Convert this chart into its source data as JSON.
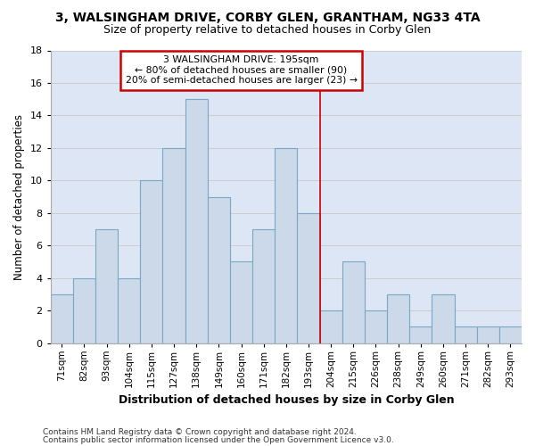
{
  "title1": "3, WALSINGHAM DRIVE, CORBY GLEN, GRANTHAM, NG33 4TA",
  "title2": "Size of property relative to detached houses in Corby Glen",
  "xlabel": "Distribution of detached houses by size in Corby Glen",
  "ylabel": "Number of detached properties",
  "footnote1": "Contains HM Land Registry data © Crown copyright and database right 2024.",
  "footnote2": "Contains public sector information licensed under the Open Government Licence v3.0.",
  "categories": [
    "71sqm",
    "82sqm",
    "93sqm",
    "104sqm",
    "115sqm",
    "127sqm",
    "138sqm",
    "149sqm",
    "160sqm",
    "171sqm",
    "182sqm",
    "193sqm",
    "204sqm",
    "215sqm",
    "226sqm",
    "238sqm",
    "249sqm",
    "260sqm",
    "271sqm",
    "282sqm",
    "293sqm"
  ],
  "values": [
    3,
    4,
    7,
    4,
    10,
    12,
    15,
    9,
    5,
    7,
    12,
    8,
    2,
    5,
    2,
    3,
    1,
    3,
    1,
    1,
    1
  ],
  "bar_color": "#ccd9e8",
  "bar_edge_color": "#7ba7c7",
  "annotation_text_line1": "3 WALSINGHAM DRIVE: 195sqm",
  "annotation_text_line2": "← 80% of detached houses are smaller (90)",
  "annotation_text_line3": "20% of semi-detached houses are larger (23) →",
  "red_line_color": "#cc0000",
  "annotation_box_edge": "#cc0000",
  "ylim": [
    0,
    18
  ],
  "yticks": [
    0,
    2,
    4,
    6,
    8,
    10,
    12,
    14,
    16,
    18
  ],
  "grid_color": "#cccccc",
  "background_color": "#dce6f5"
}
